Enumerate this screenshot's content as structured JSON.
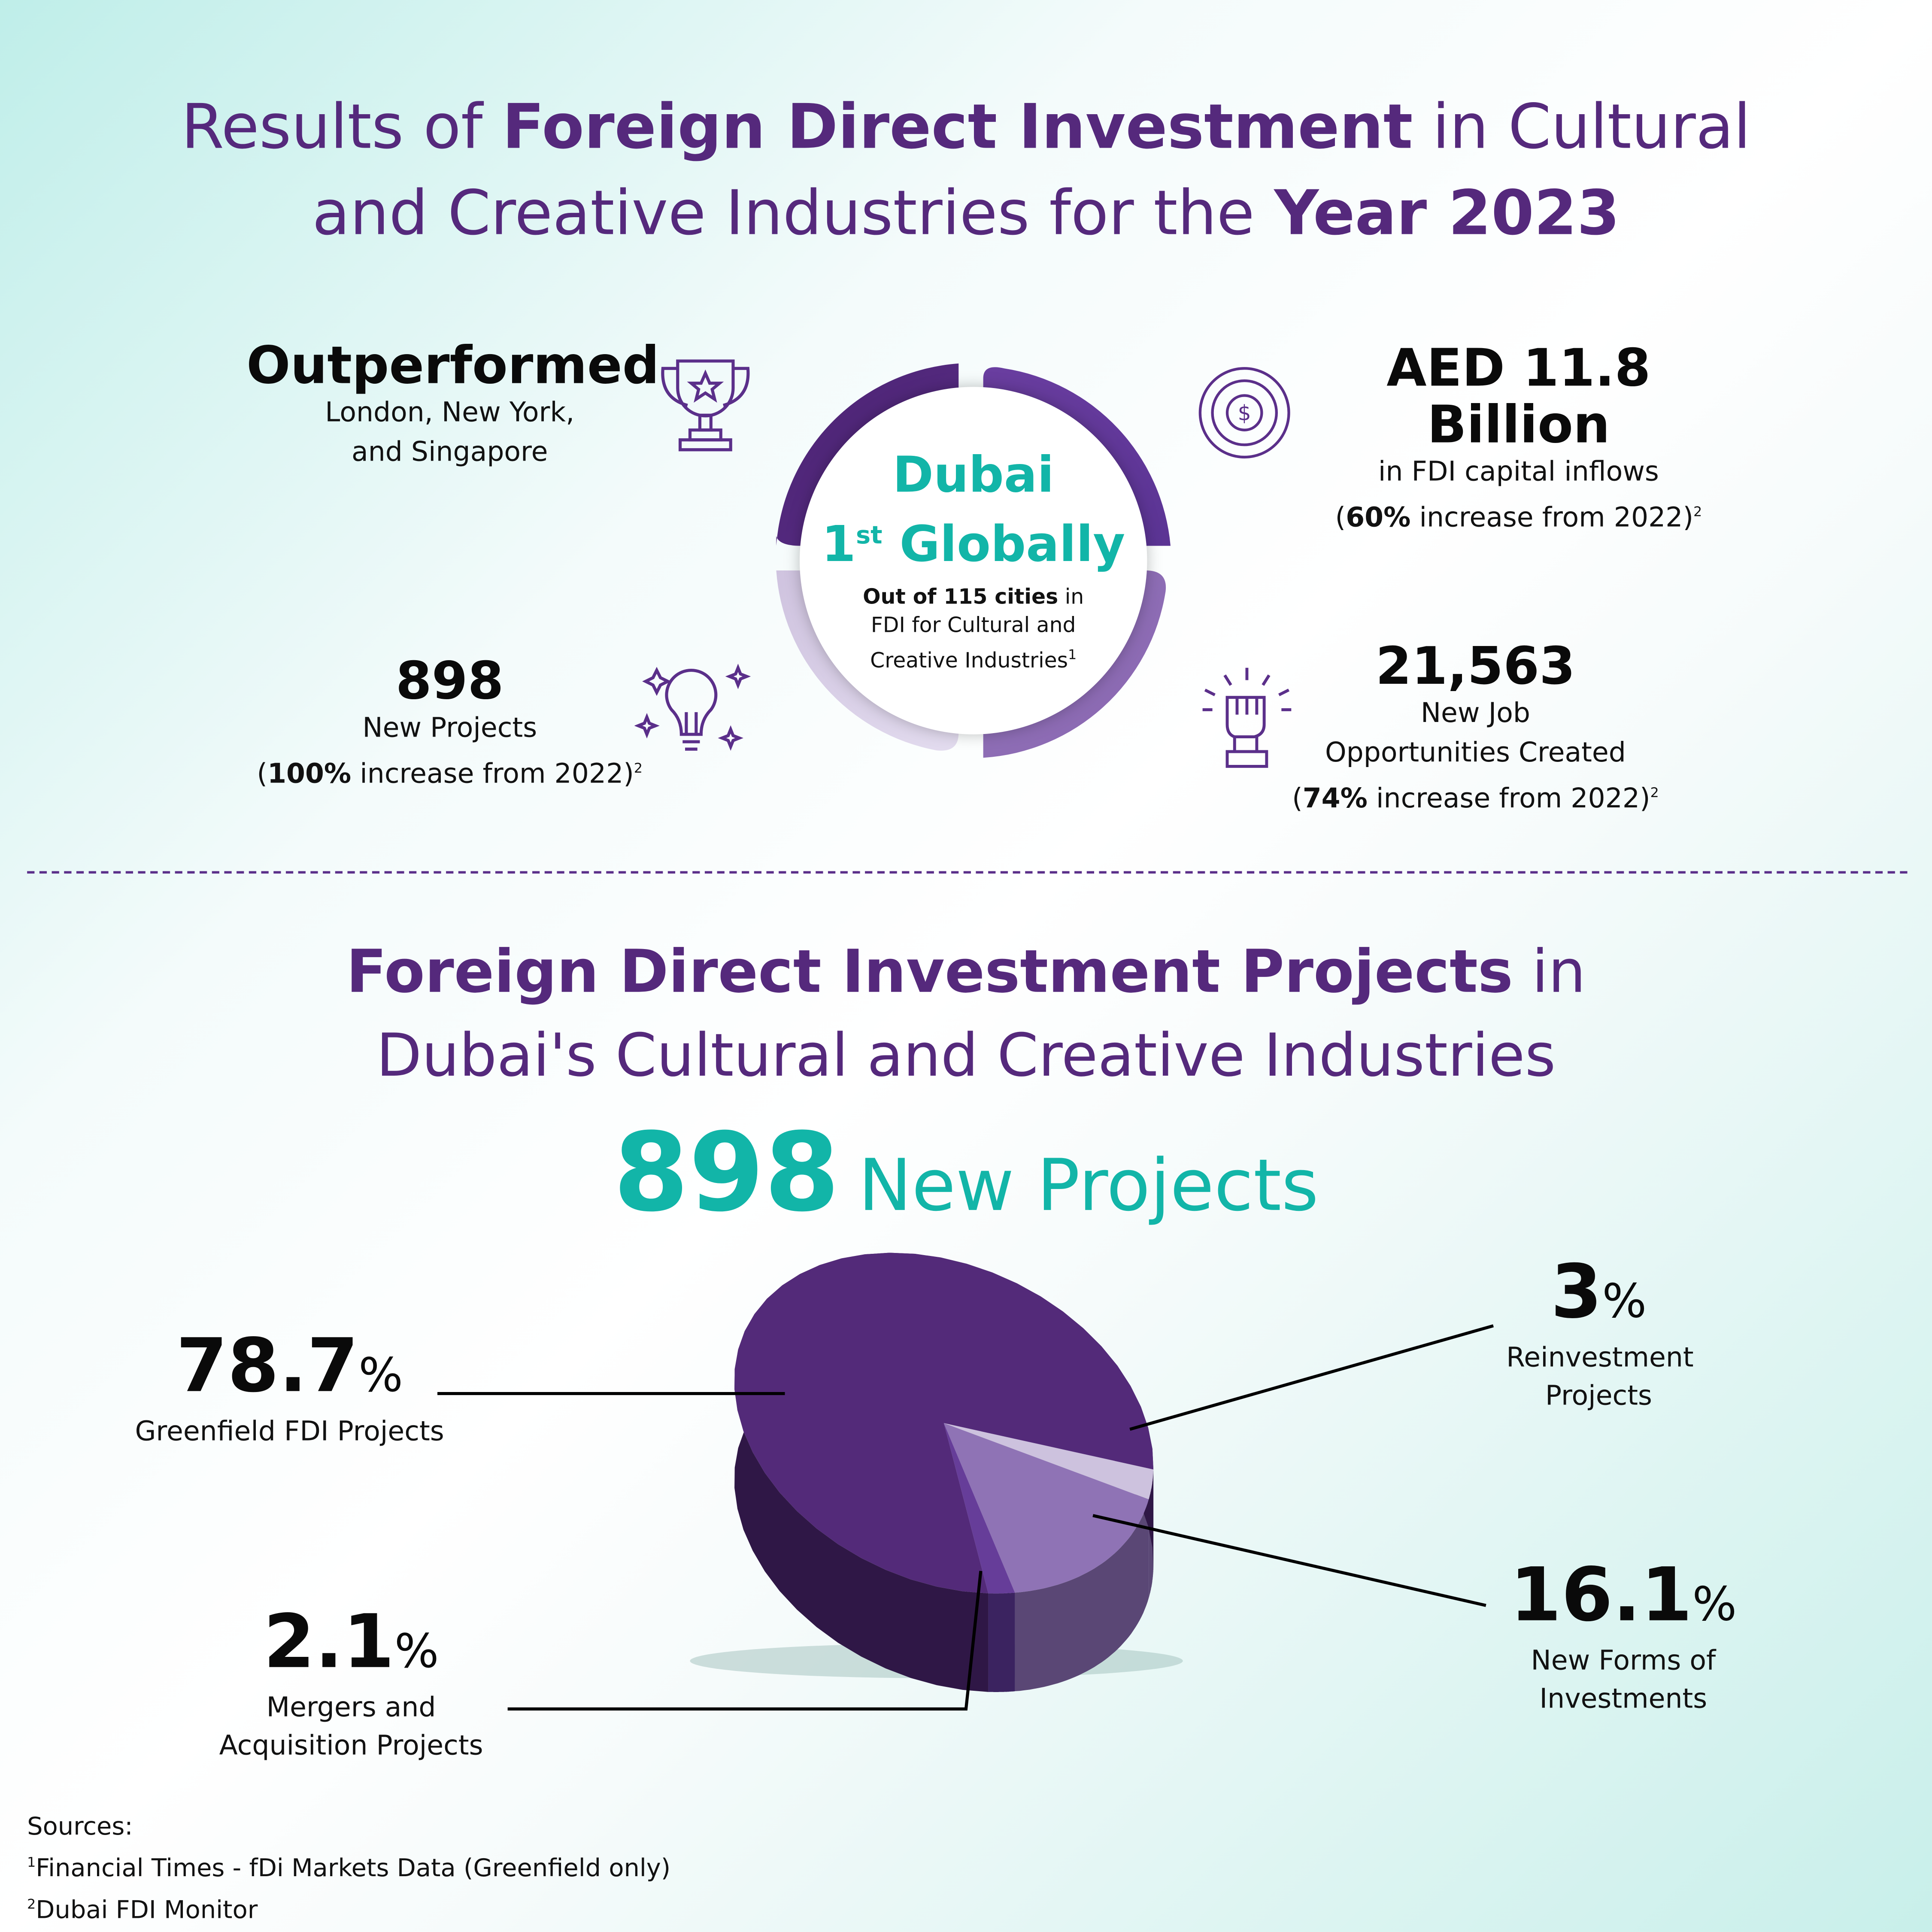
{
  "header": {
    "t1a": "Results of ",
    "t1b": "Foreign Direct Investment",
    "t1c": " in Cultural",
    "t2a": "and Creative Industries for the ",
    "t2b": "Year 2023"
  },
  "center": {
    "line1": "Dubai",
    "line2_num": "1",
    "line2_sup": "st",
    "line2_rest": " Globally",
    "desc_bold": "Out of 115 cities",
    "desc_1": " in",
    "desc_2": "FDI for Cultural and",
    "desc_3": "Creative Industries",
    "desc_sup": "1"
  },
  "stats": {
    "outperformed": {
      "big": "Outperformed",
      "l1": "London, New York,",
      "l2": "and Singapore",
      "icon": "trophy-icon"
    },
    "aed": {
      "big": "AED 11.8 Billion",
      "l1": "in FDI capital inflows",
      "l2a": "(",
      "l2b": "60%",
      "l2c": " increase from 2022)",
      "sup": "2",
      "icon": "dollar-coin-icon"
    },
    "projects": {
      "big": "898",
      "l1": "New Projects",
      "l2a": "(",
      "l2b": "100%",
      "l2c": " increase from 2022)",
      "sup": "2",
      "icon": "lightbulb-icon"
    },
    "jobs": {
      "big": "21,563",
      "l1": "New Job",
      "l2": "Opportunities Created",
      "l3a": "(",
      "l3b": "74%",
      "l3c": " increase from 2022)",
      "sup": "2",
      "icon": "raised-fist-icon"
    }
  },
  "section2": {
    "t1a": "Foreign Direct Investment Projects",
    "t1b": " in",
    "t2": "Dubai's Cultural and Creative Industries",
    "count": "898",
    "count_label": "New Projects"
  },
  "chart_data": {
    "type": "pie",
    "style": "3d",
    "categories": [
      "Reinvestment Projects",
      "New Forms of Investments",
      "Mergers and Acquisition Projects",
      "Greenfield FDI Projects"
    ],
    "values": [
      3,
      16.1,
      2.1,
      78.7
    ],
    "labels": [
      "3",
      "16.1",
      "2.1",
      "78.7"
    ],
    "unit": "%",
    "colors": [
      "#cdc2de",
      "#8f73b5",
      "#663d99",
      "#532a79"
    ],
    "side_colors": [
      "#5a4775",
      "#5a4775",
      "#3b2360",
      "#2f1746"
    ]
  },
  "sources": {
    "title": "Sources:",
    "s1_num": "1",
    "s1": "Financial Times - fDi Markets Data (Greenfield only)",
    "s2_num": "2",
    "s2": "Dubai FDI Monitor"
  },
  "colors": {
    "purple": "#55297c",
    "teal": "#12b5a8"
  }
}
